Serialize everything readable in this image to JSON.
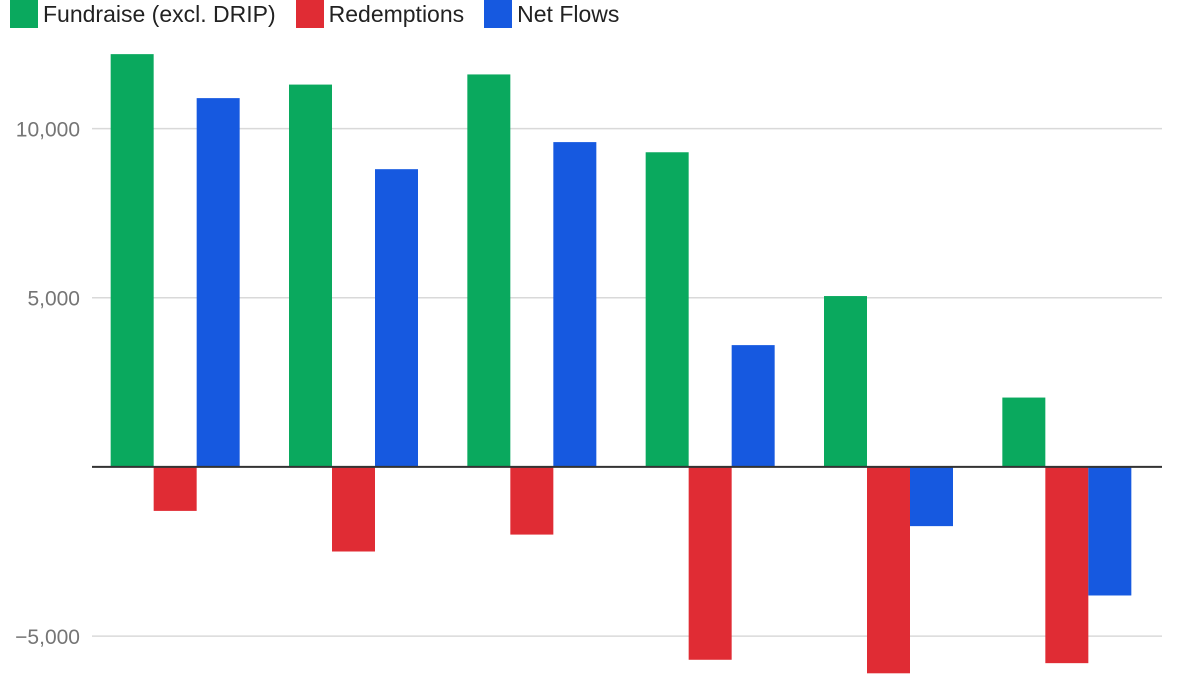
{
  "chart_data": {
    "type": "bar",
    "categories": [
      "",
      "",
      "",
      "",
      "",
      ""
    ],
    "series": [
      {
        "name": "Fundraise (excl. DRIP)",
        "color": "#0aa95e",
        "values": [
          12200,
          11300,
          11600,
          9300,
          5050,
          2050
        ]
      },
      {
        "name": "Redemptions",
        "color": "#e02c34",
        "values": [
          -1300,
          -2500,
          -2000,
          -5700,
          -6100,
          -5800
        ]
      },
      {
        "name": "Net Flows",
        "color": "#1659e0",
        "values": [
          10900,
          8800,
          9600,
          3600,
          -1750,
          -3800
        ]
      }
    ],
    "ylim": [
      -6150,
      13800
    ],
    "yticks": [
      {
        "value": -5000,
        "label": "−5,000"
      },
      {
        "value": 5000,
        "label": "5,000"
      },
      {
        "value": 10000,
        "label": "10,000"
      }
    ],
    "grid": true,
    "legend_position": "top-left",
    "title": "",
    "xlabel": "",
    "ylabel": ""
  }
}
